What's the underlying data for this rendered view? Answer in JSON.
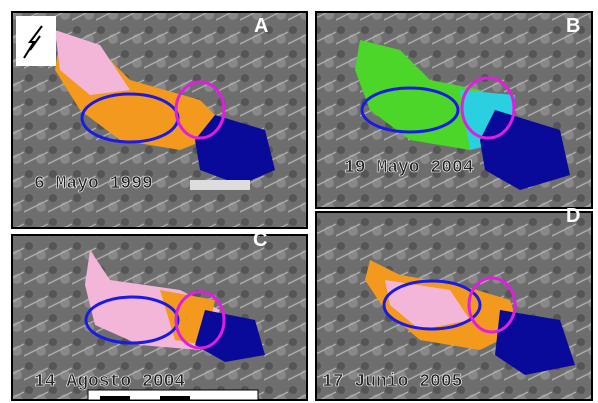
{
  "panels": [
    {
      "letter": "A",
      "date": "6 Mayo 1999"
    },
    {
      "letter": "B",
      "date": "19 Mayo 2004"
    },
    {
      "letter": "C",
      "date": "14 Agosto 2004"
    },
    {
      "letter": "D",
      "date": "17 Junio 2005"
    }
  ]
}
